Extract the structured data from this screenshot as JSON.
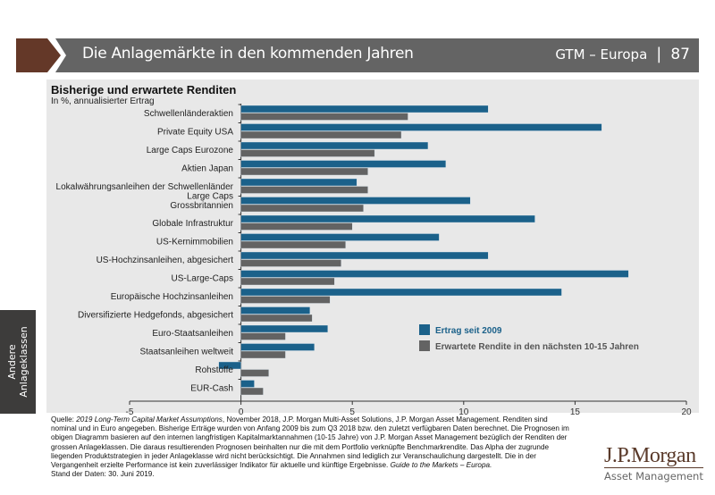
{
  "header": {
    "title": "Die Anlagemärkte in den kommenden Jahren",
    "guide": "GTM – Europa",
    "separator": "|",
    "page_number": "87"
  },
  "side_tab": {
    "line1": "Andere",
    "line2": "Anlageklassen"
  },
  "colors": {
    "brand_brown": "#643828",
    "header_gray": "#646464",
    "series_blue": "#1b618a",
    "series_gray": "#636363",
    "panel": "#e8e8e8"
  },
  "chart_data": {
    "type": "bar",
    "orientation": "horizontal",
    "title": "Bisherige und erwartete Renditen",
    "subtitle": "In %, annualisierter Ertrag",
    "xlabel": "",
    "ylabel": "",
    "xlim": [
      -5,
      20
    ],
    "xticks": [
      -5,
      0,
      5,
      10,
      15,
      20
    ],
    "grid": false,
    "legend_position": "bottom-right",
    "categories": [
      [
        "Schwellenländeraktien"
      ],
      [
        "Private Equity USA"
      ],
      [
        "Large Caps Eurozone"
      ],
      [
        "Aktien Japan"
      ],
      [
        "Lokalwährungsanleihen der Schwellenländer"
      ],
      [
        "Large Caps",
        "Grossbritannien"
      ],
      [
        "Globale Infrastruktur"
      ],
      [
        "US-Kernimmobilien"
      ],
      [
        "US-Hochzinsanleihen, abgesichert"
      ],
      [
        "US-Large-Caps"
      ],
      [
        "Europäische Hochzinsanleihen"
      ],
      [
        "Diversifizierte Hedgefonds, abgesichert"
      ],
      [
        "Euro-Staatsanleihen"
      ],
      [
        "Staatsanleihen weltweit"
      ],
      [
        "Rohstoffe"
      ],
      [
        "EUR-Cash"
      ]
    ],
    "series": [
      {
        "name": "Ertrag seit 2009",
        "color": "#1b618a",
        "values": [
          11.1,
          16.2,
          8.4,
          9.2,
          5.2,
          10.3,
          13.2,
          8.9,
          11.1,
          17.4,
          14.4,
          3.1,
          3.9,
          3.3,
          -1.0,
          0.6
        ]
      },
      {
        "name": "Erwartete Rendite in den nächsten 10-15 Jahren",
        "color": "#636363",
        "values": [
          7.5,
          7.2,
          6.0,
          5.7,
          5.7,
          5.5,
          5.0,
          4.7,
          4.5,
          4.2,
          4.0,
          3.2,
          2.0,
          2.0,
          1.25,
          1.0
        ]
      }
    ]
  },
  "source": {
    "prefix": "Quelle: ",
    "italic1": "2019 Long-Term Capital Market Assumptions",
    "text1": ", November 2018, J.P. Morgan Multi-Asset Solutions, J.P. Morgan Asset Management. Renditen sind nominal und in Euro angegeben. Bisherige Erträge wurden von Anfang 2009 bis zum Q3 2018 bzw. den zuletzt verfügbaren Daten berechnet. Die Prognosen im obigen Diagramm basieren auf den internen langfristigen Kapitalmarktannahmen (10-15 Jahre) von J.P. Morgan Asset Management bezüglich der Renditen der grossen Anlageklassen. Die daraus resultierenden Prognosen beinhalten nur die mit dem Portfolio verknüpfte Benchmarkrendite. Das Alpha der zugrunde liegenden Produktstrategien in jeder Anlageklasse wird nicht berücksichtigt. Die Annahmen sind lediglich zur Veranschaulichung dargestellt. Die in der Vergangenheit erzielte Performance ist kein zuverlässiger Indikator für aktuelle und künftige Ergebnisse. ",
    "italic2": "Guide to the Markets – Europa.",
    "date": "Stand der Daten: 30. Juni 2019."
  },
  "logo": {
    "name": "J.P.Morgan",
    "tagline": "Asset Management"
  }
}
